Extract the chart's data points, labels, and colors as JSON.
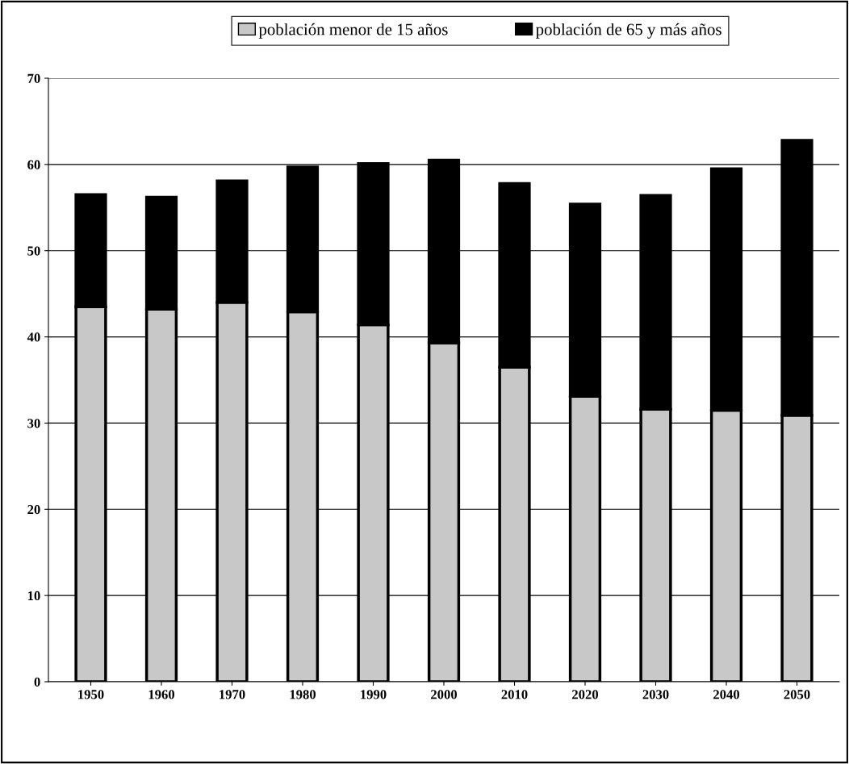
{
  "chart_data": {
    "type": "bar",
    "stacked": true,
    "categories": [
      "1950",
      "1960",
      "1970",
      "1980",
      "1990",
      "2000",
      "2010",
      "2020",
      "2030",
      "2040",
      "2050"
    ],
    "series": [
      {
        "name": "población menor de 15 años",
        "color": "#c8c8c8",
        "values": [
          43.5,
          43.2,
          44.0,
          42.9,
          41.4,
          39.3,
          36.5,
          33.1,
          31.6,
          31.5,
          30.9
        ]
      },
      {
        "name": "población de 65 y más años",
        "color": "#000000",
        "values": [
          13.0,
          13.0,
          14.1,
          16.8,
          18.7,
          21.2,
          21.3,
          22.3,
          24.8,
          28.0,
          31.9
        ]
      }
    ],
    "ylim": [
      0,
      70
    ],
    "yticks": [
      0,
      10,
      20,
      30,
      40,
      50,
      60,
      70
    ],
    "grid": "y",
    "legend": "top"
  }
}
